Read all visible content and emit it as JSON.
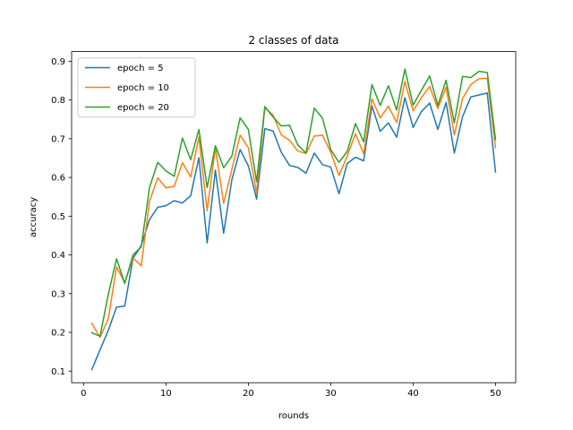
{
  "chart_data": {
    "type": "line",
    "title": "2 classes of data",
    "xlabel": "rounds",
    "ylabel": "accuracy",
    "xlim": [
      -1.45,
      52.45
    ],
    "ylim": [
      0.07,
      0.925
    ],
    "xticks": [
      0,
      10,
      20,
      30,
      40,
      50
    ],
    "yticks": [
      0.1,
      0.2,
      0.3,
      0.4,
      0.5,
      0.6,
      0.7,
      0.8,
      0.9
    ],
    "legend_position": "top-left",
    "grid": false,
    "x": [
      1,
      2,
      3,
      4,
      5,
      6,
      7,
      8,
      9,
      10,
      11,
      12,
      13,
      14,
      15,
      16,
      17,
      18,
      19,
      20,
      21,
      22,
      23,
      24,
      25,
      26,
      27,
      28,
      29,
      30,
      31,
      32,
      33,
      34,
      35,
      36,
      37,
      38,
      39,
      40,
      41,
      42,
      43,
      44,
      45,
      46,
      47,
      48,
      49,
      50
    ],
    "series": [
      {
        "name": "epoch = 5",
        "color": "#1f77b4",
        "values": [
          0.104,
          0.155,
          0.205,
          0.265,
          0.268,
          0.391,
          0.424,
          0.491,
          0.523,
          0.527,
          0.54,
          0.534,
          0.553,
          0.651,
          0.431,
          0.619,
          0.456,
          0.594,
          0.672,
          0.63,
          0.544,
          0.726,
          0.72,
          0.665,
          0.631,
          0.626,
          0.611,
          0.663,
          0.633,
          0.627,
          0.558,
          0.636,
          0.652,
          0.643,
          0.785,
          0.719,
          0.741,
          0.704,
          0.806,
          0.729,
          0.77,
          0.792,
          0.724,
          0.794,
          0.663,
          0.757,
          0.808,
          0.813,
          0.818,
          0.614
        ]
      },
      {
        "name": "epoch = 10",
        "color": "#ff7f0e",
        "values": [
          0.223,
          0.187,
          0.235,
          0.369,
          0.328,
          0.392,
          0.372,
          0.538,
          0.599,
          0.573,
          0.577,
          0.638,
          0.601,
          0.704,
          0.514,
          0.677,
          0.533,
          0.621,
          0.709,
          0.677,
          0.56,
          0.78,
          0.761,
          0.71,
          0.696,
          0.668,
          0.662,
          0.707,
          0.709,
          0.665,
          0.605,
          0.655,
          0.713,
          0.661,
          0.803,
          0.754,
          0.784,
          0.742,
          0.848,
          0.772,
          0.806,
          0.835,
          0.778,
          0.833,
          0.71,
          0.804,
          0.84,
          0.855,
          0.856,
          0.677
        ]
      },
      {
        "name": "epoch = 20",
        "color": "#2ca02c",
        "values": [
          0.199,
          0.19,
          0.298,
          0.39,
          0.326,
          0.4,
          0.421,
          0.574,
          0.639,
          0.617,
          0.603,
          0.702,
          0.646,
          0.724,
          0.574,
          0.682,
          0.625,
          0.655,
          0.754,
          0.724,
          0.589,
          0.783,
          0.756,
          0.733,
          0.735,
          0.684,
          0.663,
          0.779,
          0.753,
          0.672,
          0.639,
          0.667,
          0.739,
          0.692,
          0.84,
          0.786,
          0.837,
          0.774,
          0.88,
          0.787,
          0.825,
          0.862,
          0.786,
          0.851,
          0.741,
          0.861,
          0.858,
          0.874,
          0.871,
          0.698
        ]
      }
    ]
  }
}
